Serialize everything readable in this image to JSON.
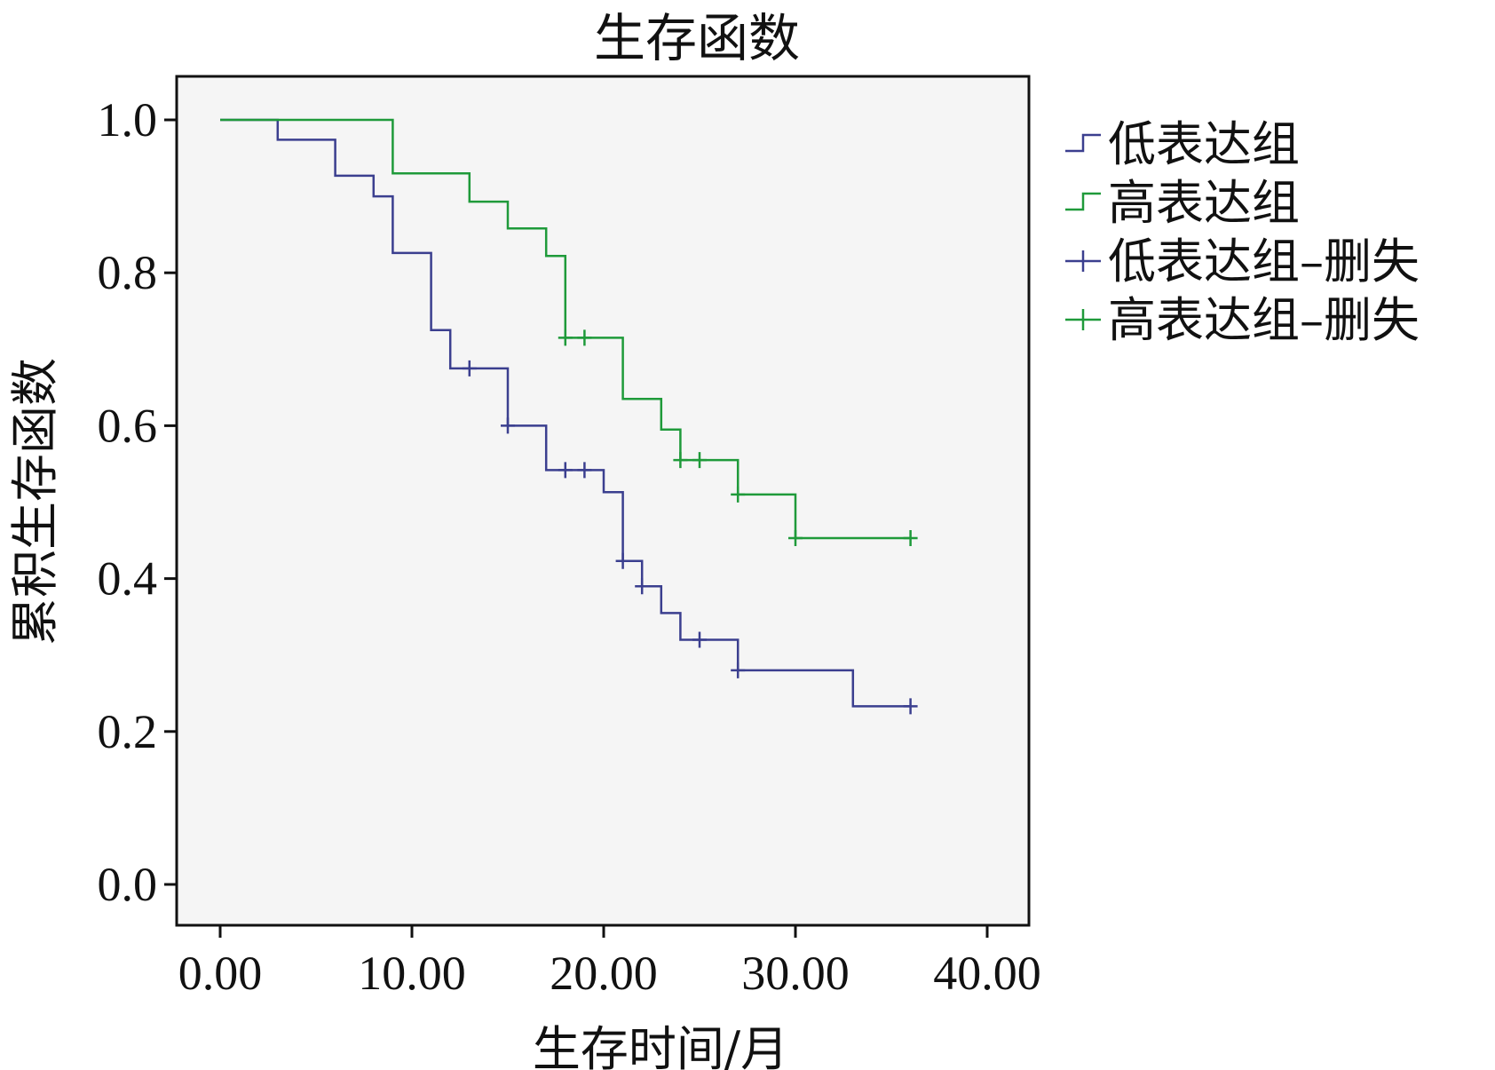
{
  "chart_data": {
    "type": "line",
    "subtype": "kaplan-meier-step",
    "title": "生存函数",
    "xlabel": "生存时间/月",
    "ylabel": "累积生存函数",
    "xlim": [
      0,
      40
    ],
    "ylim": [
      0,
      1.0
    ],
    "xticks": [
      0,
      10,
      20,
      30,
      40
    ],
    "xtick_labels": [
      "0.00",
      "10.00",
      "20.00",
      "30.00",
      "40.00"
    ],
    "yticks": [
      0.0,
      0.2,
      0.4,
      0.6,
      0.8,
      1.0
    ],
    "ytick_labels": [
      "0.0",
      "0.2",
      "0.4",
      "0.6",
      "0.8",
      "1.0"
    ],
    "grid": false,
    "legend_position": "right",
    "plot_background": "#f5f5f5",
    "series": [
      {
        "name": "低表达组",
        "color": "#3b3f8f",
        "steps": [
          [
            0,
            1.0
          ],
          [
            3,
            0.974
          ],
          [
            6,
            0.927
          ],
          [
            8,
            0.9
          ],
          [
            9,
            0.826
          ],
          [
            11,
            0.725
          ],
          [
            12,
            0.675
          ],
          [
            15,
            0.6
          ],
          [
            17,
            0.542
          ],
          [
            20,
            0.513
          ],
          [
            21,
            0.423
          ],
          [
            22,
            0.39
          ],
          [
            23,
            0.355
          ],
          [
            24,
            0.32
          ],
          [
            27,
            0.28
          ],
          [
            33,
            0.233
          ],
          [
            36,
            0.233
          ]
        ],
        "censored": [
          [
            13,
            0.675
          ],
          [
            15,
            0.6
          ],
          [
            18,
            0.542
          ],
          [
            19,
            0.542
          ],
          [
            21,
            0.423
          ],
          [
            22,
            0.39
          ],
          [
            25,
            0.32
          ],
          [
            27,
            0.28
          ],
          [
            36,
            0.233
          ]
        ]
      },
      {
        "name": "高表达组",
        "color": "#1f9a3a",
        "steps": [
          [
            0,
            1.0
          ],
          [
            9,
            0.93
          ],
          [
            13,
            0.893
          ],
          [
            15,
            0.858
          ],
          [
            17,
            0.822
          ],
          [
            18,
            0.715
          ],
          [
            21,
            0.635
          ],
          [
            23,
            0.595
          ],
          [
            24,
            0.555
          ],
          [
            27,
            0.51
          ],
          [
            30,
            0.453
          ],
          [
            36,
            0.453
          ]
        ],
        "censored": [
          [
            18,
            0.715
          ],
          [
            19,
            0.715
          ],
          [
            24,
            0.555
          ],
          [
            25,
            0.555
          ],
          [
            27,
            0.51
          ],
          [
            30,
            0.453
          ],
          [
            36,
            0.453
          ]
        ]
      }
    ],
    "legend": [
      {
        "label": "低表达组",
        "marker": "step",
        "color": "#3b3f8f"
      },
      {
        "label": "高表达组",
        "marker": "step",
        "color": "#1f9a3a"
      },
      {
        "label": "低表达组–删失",
        "marker": "plus",
        "color": "#3b3f8f"
      },
      {
        "label": "高表达组–删失",
        "marker": "plus",
        "color": "#1f9a3a"
      }
    ]
  }
}
